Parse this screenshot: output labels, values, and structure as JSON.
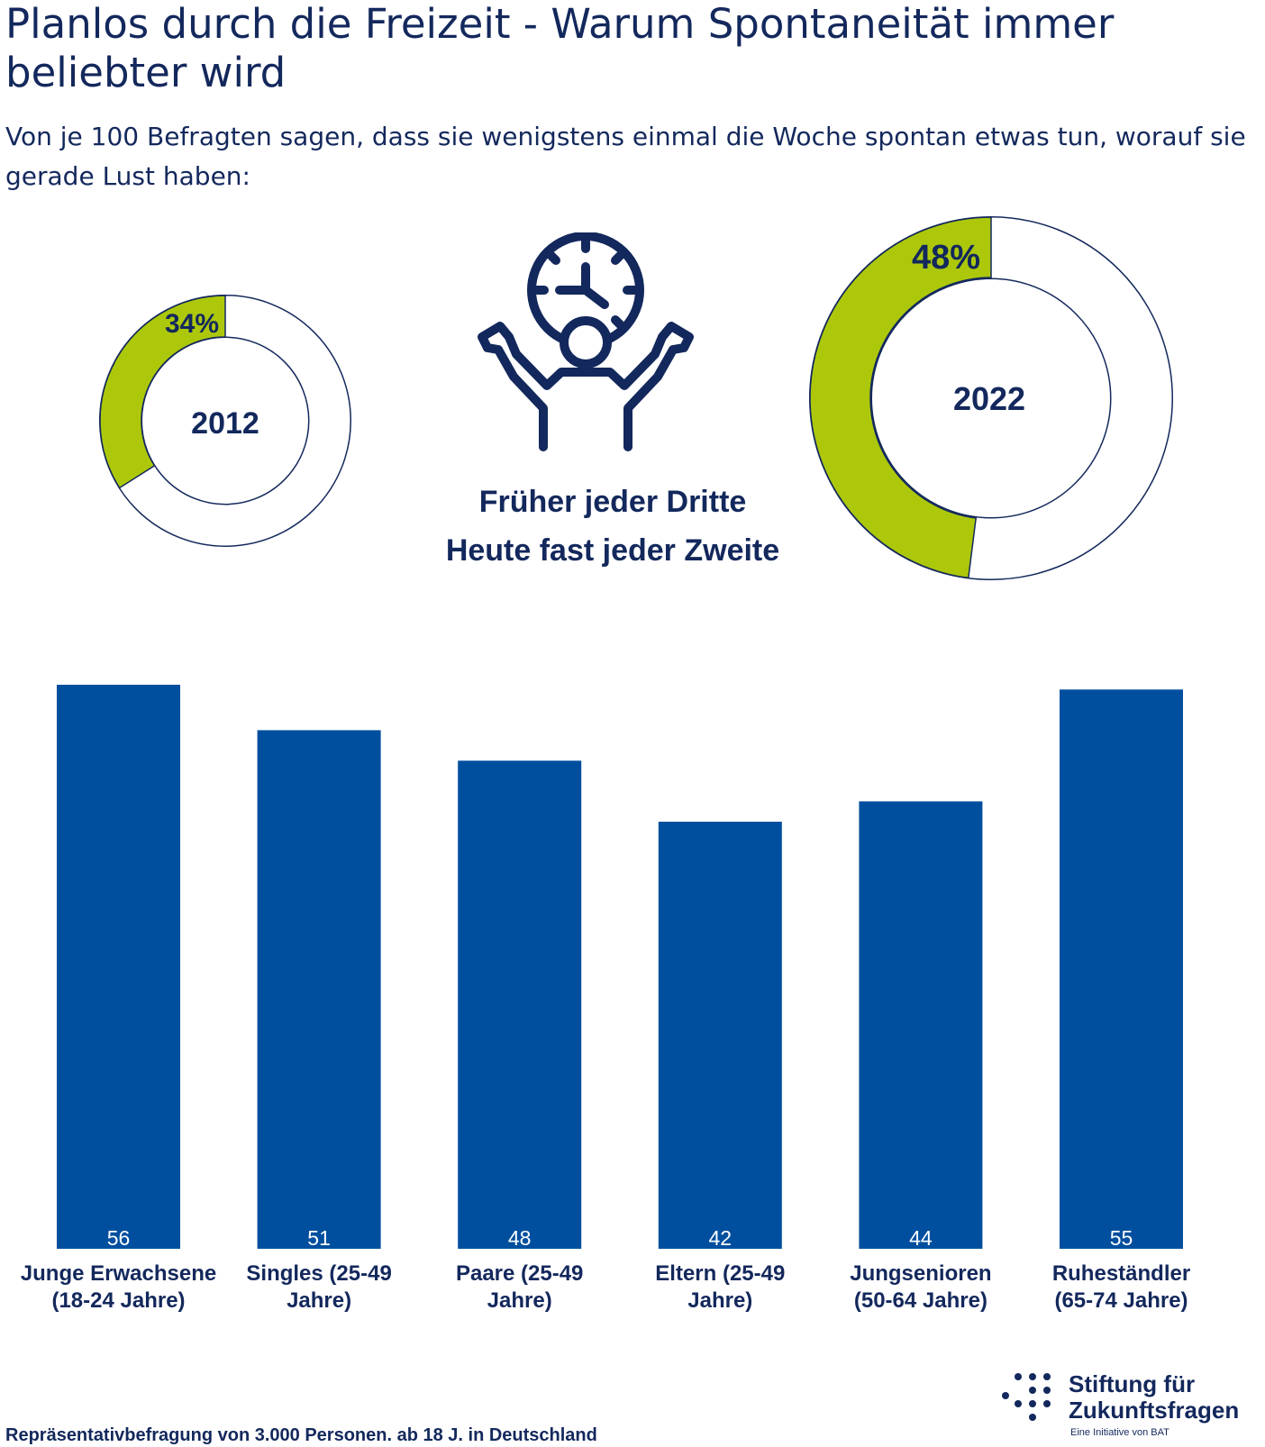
{
  "title": "Planlos durch die Freizeit - Warum Spontaneität immer beliebter wird",
  "subtitle": "Von je 100 Befragten sagen, dass sie wenigstens einmal die Woche spontan etwas tun, worauf sie gerade Lust haben:",
  "donuts": [
    {
      "year": "2012",
      "percent_label": "34%",
      "value": 34
    },
    {
      "year": "2022",
      "percent_label": "48%",
      "value": 48
    }
  ],
  "tagline": {
    "line1": "Früher jeder Dritte",
    "line2": "Heute fast jeder Zweite"
  },
  "icon": "person-with-clock-icon",
  "colors": {
    "navy": "#13285c",
    "bar": "#004f9f",
    "green": "#adc80b"
  },
  "chart_data": {
    "type": "bar",
    "categories": [
      [
        "Junge Erwachsene",
        "(18-24 Jahre)"
      ],
      [
        "Singles (25-49",
        "Jahre)"
      ],
      [
        "Paare (25-49",
        "Jahre)"
      ],
      [
        "Eltern (25-49",
        "Jahre)"
      ],
      [
        "Jungsenioren",
        "(50-64 Jahre)"
      ],
      [
        "Ruheständler",
        "(65-74 Jahre)"
      ]
    ],
    "values": [
      56,
      51,
      48,
      42,
      44,
      55
    ],
    "ylim": [
      0,
      56
    ],
    "grid": false,
    "data_labels": "inside-bottom"
  },
  "footer": "Repräsentativbefragung von 3.000 Personen. ab 18 J. in Deutschland",
  "logo": {
    "line1": "Stiftung für",
    "line2": "Zukunftsfragen",
    "tagline": "Eine Initiative von BAT"
  }
}
